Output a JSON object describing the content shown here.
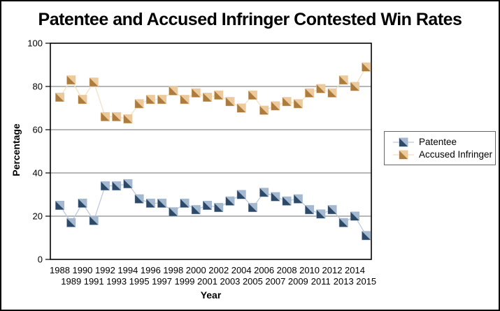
{
  "window_title": "Patentee and Accused Infringer Contested Win Rates",
  "chart_data": {
    "type": "line",
    "title": "Patentee and Accused Infringer Contested Win Rates",
    "xlabel": "Year",
    "ylabel": "Percentage",
    "ylim": [
      0,
      100
    ],
    "yticks": [
      0,
      20,
      40,
      60,
      80,
      100
    ],
    "grid": "horizontal gridlines at 20/40/60/80",
    "gridline_color": "#8c8c8c",
    "frame_color": "#000000",
    "legend_position": "right",
    "marker_style": "square split diagonally, dark lower-left / light upper-right",
    "categories": [
      1988,
      1989,
      1990,
      1991,
      1992,
      1993,
      1994,
      1995,
      1996,
      1997,
      1998,
      1999,
      2000,
      2001,
      2002,
      2003,
      2004,
      2005,
      2006,
      2007,
      2008,
      2009,
      2010,
      2011,
      2012,
      2013,
      2014,
      2015
    ],
    "series": [
      {
        "name": "Accused Infringer",
        "color_dark": "#AC7C3C",
        "color_light": "#EDCA9E",
        "line_color": "#F4DEBF",
        "values": [
          75,
          83,
          74,
          82,
          66,
          66,
          65,
          72,
          74,
          74,
          78,
          74,
          77,
          75,
          76,
          73,
          70,
          76,
          69,
          71,
          73,
          72,
          77,
          79,
          77,
          83,
          80,
          89
        ]
      },
      {
        "name": "Patentee",
        "color_dark": "#2C4A68",
        "color_light": "#A4B8D0",
        "line_color": "#B9C7DA",
        "values": [
          25,
          17,
          26,
          18,
          34,
          34,
          35,
          28,
          26,
          26,
          22,
          26,
          23,
          25,
          24,
          27,
          30,
          24,
          31,
          29,
          27,
          28,
          23,
          21,
          23,
          17,
          20,
          11
        ]
      }
    ],
    "legend_order": [
      "Patentee",
      "Accused Infringer"
    ]
  }
}
